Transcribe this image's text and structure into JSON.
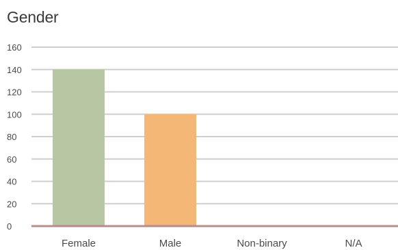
{
  "chart_data": {
    "type": "bar",
    "title": "Gender",
    "xlabel": "",
    "ylabel": "",
    "categories": [
      "Female",
      "Male",
      "Non-binary",
      "N/A"
    ],
    "values": [
      140,
      100,
      0,
      0
    ],
    "ylim": [
      0,
      160
    ],
    "yticks": [
      0,
      20,
      40,
      60,
      80,
      100,
      120,
      140,
      160
    ],
    "grid": true,
    "colors": [
      "#b7c7a3",
      "#f5b776",
      "#c88a8a",
      "#c88a8a"
    ],
    "gridline_color": "#cfcfcf",
    "zero_line_color": "#b98c8c"
  }
}
